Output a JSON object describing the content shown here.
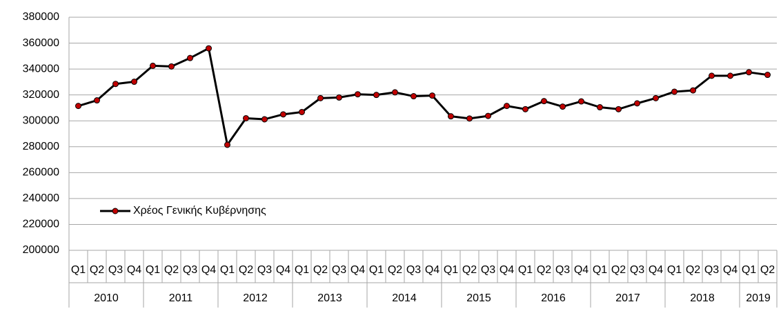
{
  "chart_data": {
    "type": "line",
    "categories": [
      "Q1",
      "Q2",
      "Q3",
      "Q4",
      "Q1",
      "Q2",
      "Q3",
      "Q4",
      "Q1",
      "Q2",
      "Q3",
      "Q4",
      "Q1",
      "Q2",
      "Q3",
      "Q4",
      "Q1",
      "Q2",
      "Q3",
      "Q4",
      "Q1",
      "Q2",
      "Q3",
      "Q4",
      "Q1",
      "Q2",
      "Q3",
      "Q4",
      "Q1",
      "Q2",
      "Q3",
      "Q4",
      "Q1",
      "Q2",
      "Q3",
      "Q4",
      "Q1",
      "Q2"
    ],
    "category_groups": [
      {
        "label": "2010",
        "count": 4
      },
      {
        "label": "2011",
        "count": 4
      },
      {
        "label": "2012",
        "count": 4
      },
      {
        "label": "2013",
        "count": 4
      },
      {
        "label": "2014",
        "count": 4
      },
      {
        "label": "2015",
        "count": 4
      },
      {
        "label": "2016",
        "count": 4
      },
      {
        "label": "2017",
        "count": 4
      },
      {
        "label": "2018",
        "count": 4
      },
      {
        "label": "2019",
        "count": 2
      }
    ],
    "series": [
      {
        "name": "Χρέος Γενικής Κυβέρνησης",
        "color": "#000000",
        "marker_color": "#c00000",
        "values": [
          311500,
          315800,
          328500,
          330200,
          342500,
          342000,
          348500,
          356000,
          281500,
          302000,
          301200,
          305000,
          306800,
          317500,
          318000,
          320500,
          320000,
          322000,
          319000,
          319500,
          303500,
          301800,
          303800,
          311500,
          309000,
          315200,
          311000,
          315000,
          310500,
          309000,
          313500,
          317500,
          322500,
          323500,
          334800,
          334800,
          337500,
          335500
        ]
      }
    ],
    "ylim": [
      200000,
      380000
    ],
    "yticks": [
      200000,
      220000,
      240000,
      260000,
      280000,
      300000,
      320000,
      340000,
      360000,
      380000
    ],
    "grid": true,
    "legend": "lower left"
  }
}
